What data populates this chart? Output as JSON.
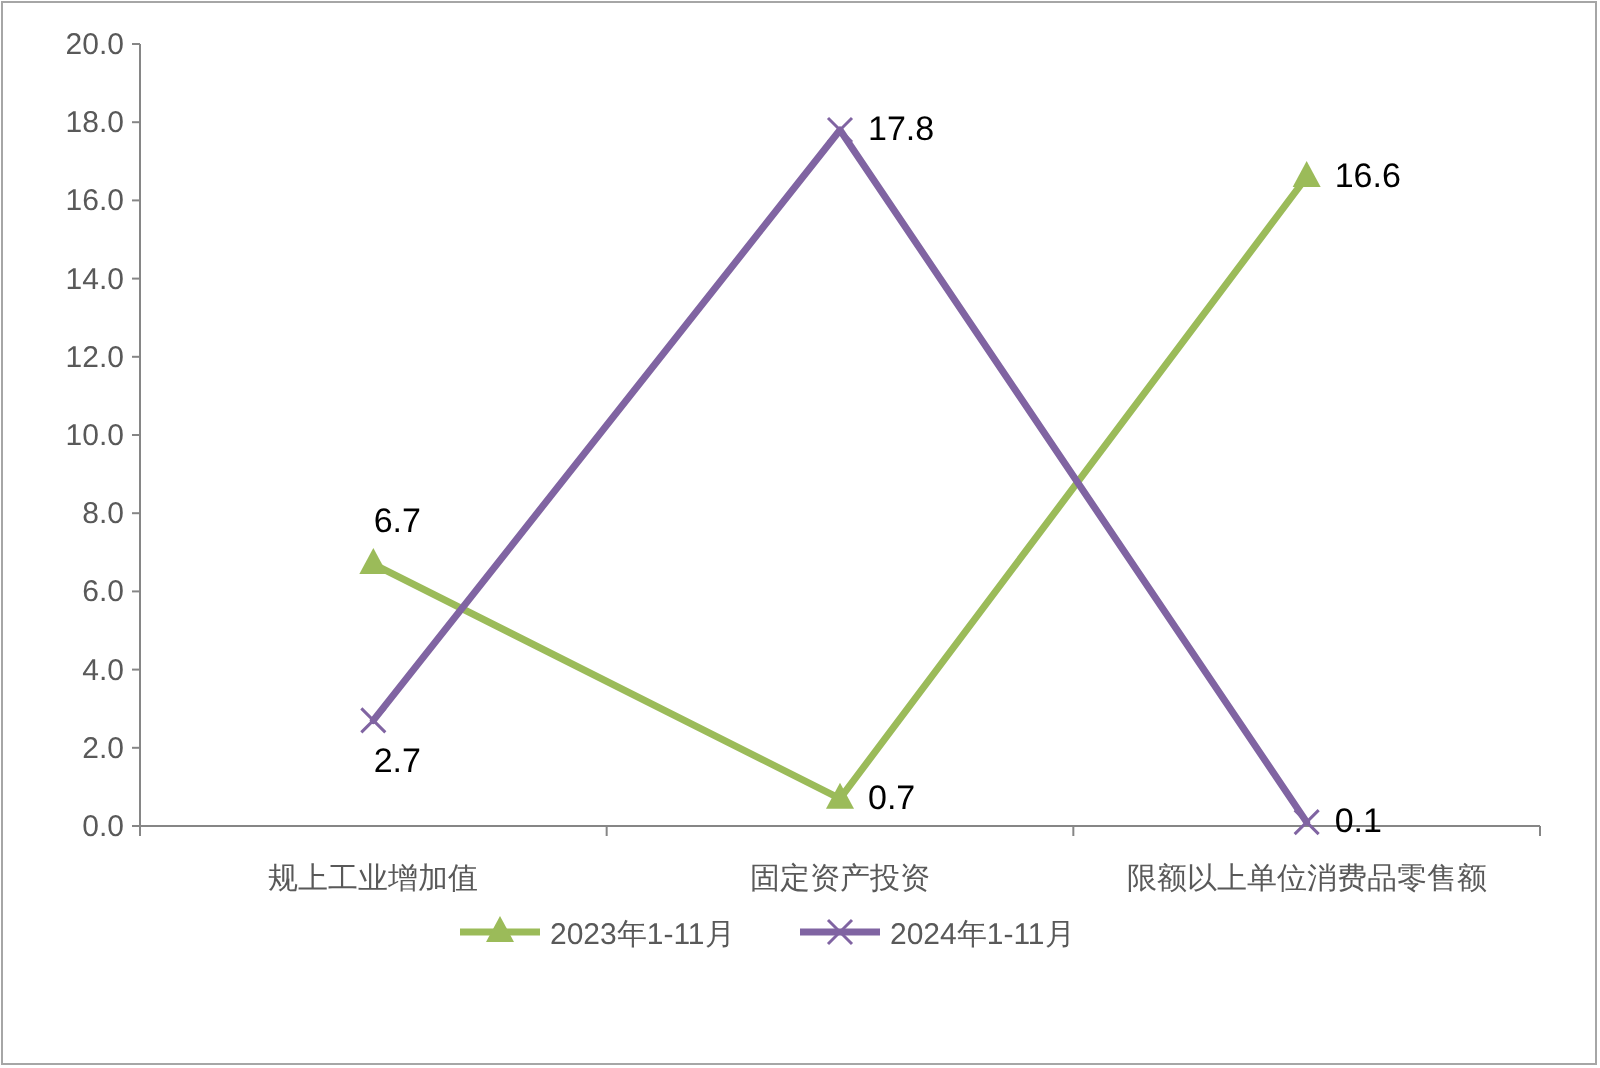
{
  "chart_data": {
    "type": "line",
    "categories": [
      "规上工业增加值",
      "固定资产投资",
      "限额以上单位消费品零售额"
    ],
    "series": [
      {
        "name": "2023年1-11月",
        "color": "#9bbb59",
        "marker": "triangle",
        "values": [
          6.7,
          0.7,
          16.6
        ]
      },
      {
        "name": "2024年1-11月",
        "color": "#8064a2",
        "marker": "cross",
        "values": [
          2.7,
          17.8,
          0.1
        ]
      }
    ],
    "ylim": [
      0,
      20
    ],
    "yticks": [
      {
        "value": 0,
        "label": "0.0"
      },
      {
        "value": 2,
        "label": "2.0"
      },
      {
        "value": 4,
        "label": "4.0"
      },
      {
        "value": 6,
        "label": "6.0"
      },
      {
        "value": 8,
        "label": "8.0"
      },
      {
        "value": 10,
        "label": "10.0"
      },
      {
        "value": 12,
        "label": "12.0"
      },
      {
        "value": 14,
        "label": "14.0"
      },
      {
        "value": 16,
        "label": "16.0"
      },
      {
        "value": 18,
        "label": "18.0"
      },
      {
        "value": 20,
        "label": "20.0"
      }
    ],
    "data_labels": true,
    "grid": false,
    "legend": "bottom",
    "line_style": "solid"
  }
}
